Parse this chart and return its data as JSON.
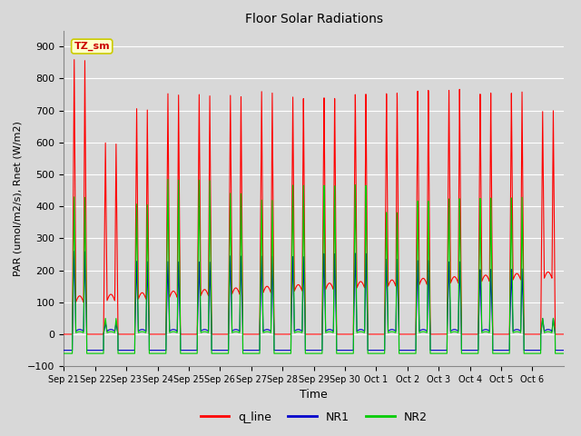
{
  "title": "Floor Solar Radiations",
  "xlabel": "Time",
  "ylabel": "PAR (umol/m2/s), Rnet (W/m2)",
  "ylim": [
    -100,
    950
  ],
  "yticks": [
    -100,
    0,
    100,
    200,
    300,
    400,
    500,
    600,
    700,
    800,
    900
  ],
  "x_labels": [
    "Sep 21",
    "Sep 22",
    "Sep 23",
    "Sep 24",
    "Sep 25",
    "Sep 26",
    "Sep 27",
    "Sep 28",
    "Sep 29",
    "Sep 30",
    "Oct 1",
    "Oct 2",
    "Oct 3",
    "Oct 4",
    "Oct 5",
    "Oct 6"
  ],
  "n_days": 16,
  "background_color": "#d8d8d8",
  "plot_bg_color": "#d8d8d8",
  "grid_color": "#ffffff",
  "colors": {
    "q_line": "#ff0000",
    "NR1": "#0000cc",
    "NR2": "#00cc00"
  },
  "annotation_text": "TZ_sm",
  "annotation_color": "#cc0000",
  "annotation_bg": "#ffffcc",
  "annotation_border": "#cccc00"
}
